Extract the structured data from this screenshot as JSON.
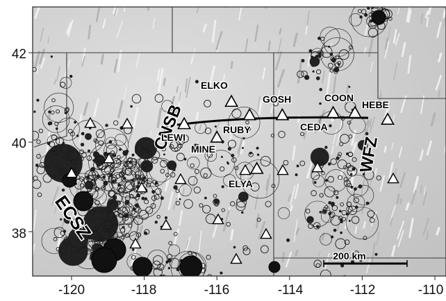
{
  "map": {
    "axes": {
      "x_ticks": [
        "-120",
        "-118",
        "-116",
        "-114",
        "-112",
        "-110"
      ],
      "y_ticks": [
        "42",
        "40",
        "38"
      ]
    },
    "zone_labels": {
      "cnsb": "CNSB",
      "ecsz": "ECSZ",
      "wfz": "WFZ"
    },
    "stations": [
      {
        "name": "ELKO",
        "lon": -115.6,
        "lat": 40.9
      },
      {
        "name": "GOSH",
        "lon": -114.2,
        "lat": 40.6
      },
      {
        "name": "COON",
        "lon": -112.2,
        "lat": 40.65
      },
      {
        "name": "HEBE",
        "lon": -111.3,
        "lat": 40.5
      },
      {
        "name": "LEWI",
        "lon": -116.9,
        "lat": 40.4
      },
      {
        "name": "RUBY",
        "lon": -115.1,
        "lat": 40.6
      },
      {
        "name": "CEDA",
        "lon": -112.8,
        "lat": 40.65
      },
      {
        "name": "MINE",
        "lon": -116.0,
        "lat": 40.1
      },
      {
        "name": "ELYA",
        "lon": -114.9,
        "lat": 39.4
      }
    ],
    "scale_bar": {
      "label": "200 km"
    },
    "colors": {
      "relief": "#d3d3d3",
      "border": "#3a3a3a",
      "transect": "#000000"
    }
  }
}
